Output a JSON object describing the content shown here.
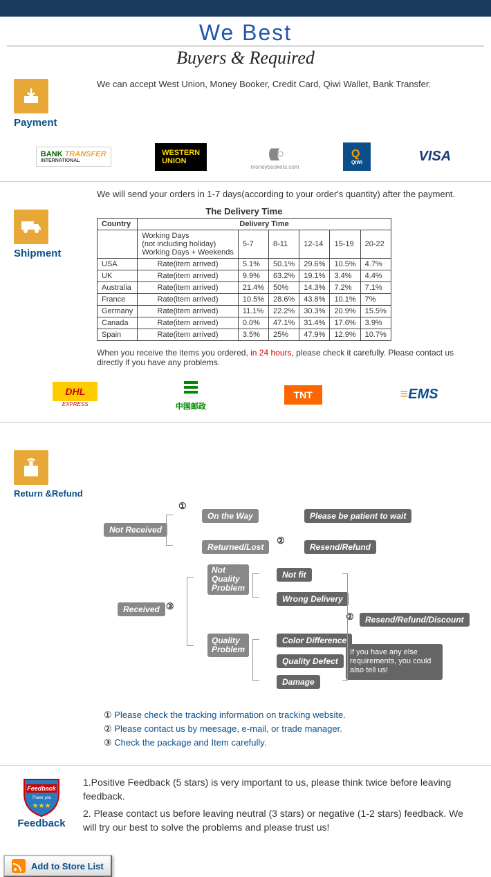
{
  "header": {
    "title": "We   Best",
    "sub": "Buyers & Required"
  },
  "payment": {
    "label": "Payment",
    "text": "We can accept West Union, Money Booker, Credit Card, Qiwi Wallet, Bank Transfer.",
    "logos": {
      "bank1": "BANK",
      "bank2": "TRANSFER",
      "bank3": "INTERNATIONAL",
      "wu1": "WESTERN",
      "wu2": "UNION",
      "mb": "((((((○",
      "mb2": "moneybookers.com",
      "qiwi": "Q",
      "qiwi2": "QIWI",
      "visa": "VISA"
    }
  },
  "shipment": {
    "label": "Shipment",
    "text": "We will send your orders in 1-7 days(according to your order's quantity) after the payment.",
    "table_title": "The Delivery Time",
    "h_country": "Country",
    "h_dt": "Delivery Time",
    "wd1": "Working Days",
    "wd2": "(not including holiday)",
    "wd3": "Working Days + Weekends",
    "ranges": [
      "5-7",
      "8-11",
      "12-14",
      "15-19",
      "20-22"
    ],
    "rows": [
      {
        "c": "USA",
        "l": "Rate(item arrived)",
        "v": [
          "5.1%",
          "50.1%",
          "29.6%",
          "10.5%",
          "4.7%"
        ]
      },
      {
        "c": "UK",
        "l": "Rate(item arrived)",
        "v": [
          "9.9%",
          "63.2%",
          "19.1%",
          "3.4%",
          "4.4%"
        ]
      },
      {
        "c": "Australia",
        "l": "Rate(item arrived)",
        "v": [
          "21.4%",
          "50%",
          "14.3%",
          "7.2%",
          "7.1%"
        ]
      },
      {
        "c": "France",
        "l": "Rate(item arrived)",
        "v": [
          "10.5%",
          "28.6%",
          "43.8%",
          "10.1%",
          "7%"
        ]
      },
      {
        "c": "Germany",
        "l": "Rate(item arrived)",
        "v": [
          "11.1%",
          "22.2%",
          "30.3%",
          "20.9%",
          "15.5%"
        ]
      },
      {
        "c": "Canada",
        "l": "Rate(item arrived)",
        "v": [
          "0.0%",
          "47.1%",
          "31.4%",
          "17.6%",
          "3.9%"
        ]
      },
      {
        "c": "Spain",
        "l": "Rate(item arrived)",
        "v": [
          "3.5%",
          "25%",
          "47.9%",
          "12.9%",
          "10.7%"
        ]
      }
    ],
    "note_pre": "When you receive the items you ordered, ",
    "note_red": "in 24 hours",
    "note_post": ", please check it carefully. Please contact us directly if you have any problems.",
    "logos": {
      "dhl": "DHL",
      "dhl2": "EXPRESS",
      "chpost": "中国邮政",
      "tnt": "TNT",
      "ems": "EMS"
    }
  },
  "return": {
    "label": "Return &Refund",
    "nodes": {
      "nr": "Not Received",
      "otw": "On the Way",
      "pbp": "Please be patient to wait",
      "rl": "Returned/Lost",
      "rr": "Resend/Refund",
      "rcv": "Received",
      "nqp1": "Not",
      "nqp2": "Quality",
      "nqp3": "Problem",
      "nf": "Not fit",
      "wd": "Wrong Delivery",
      "qp1": "Quality",
      "qp2": "Problem",
      "cd": "Color Difference",
      "qd": "Quality Defect",
      "dmg": "Damage",
      "rrd": "Resend/Refund/Discount",
      "tip": "If you have any else requirements, you could also tell us!"
    },
    "circ": {
      "1": "①",
      "2": "②",
      "3": "③"
    },
    "notes": [
      "Please check the tracking information on tracking website.",
      "Please contact us by meesage, e-mail, or trade manager.",
      "Check the package and Item carefully."
    ]
  },
  "feedback": {
    "label": "Feedback",
    "badge": "Feedback",
    "thank": "Thank you",
    "line1": "1.Positive Feedback (5 stars) is very important to us, please think twice before leaving feedback.",
    "line2": "2. Please contact us before leaving neutral (3 stars) or negative (1-2 stars) feedback. We will try our best to solve the problems and please trust us!"
  },
  "addstore": "Add to Store List"
}
